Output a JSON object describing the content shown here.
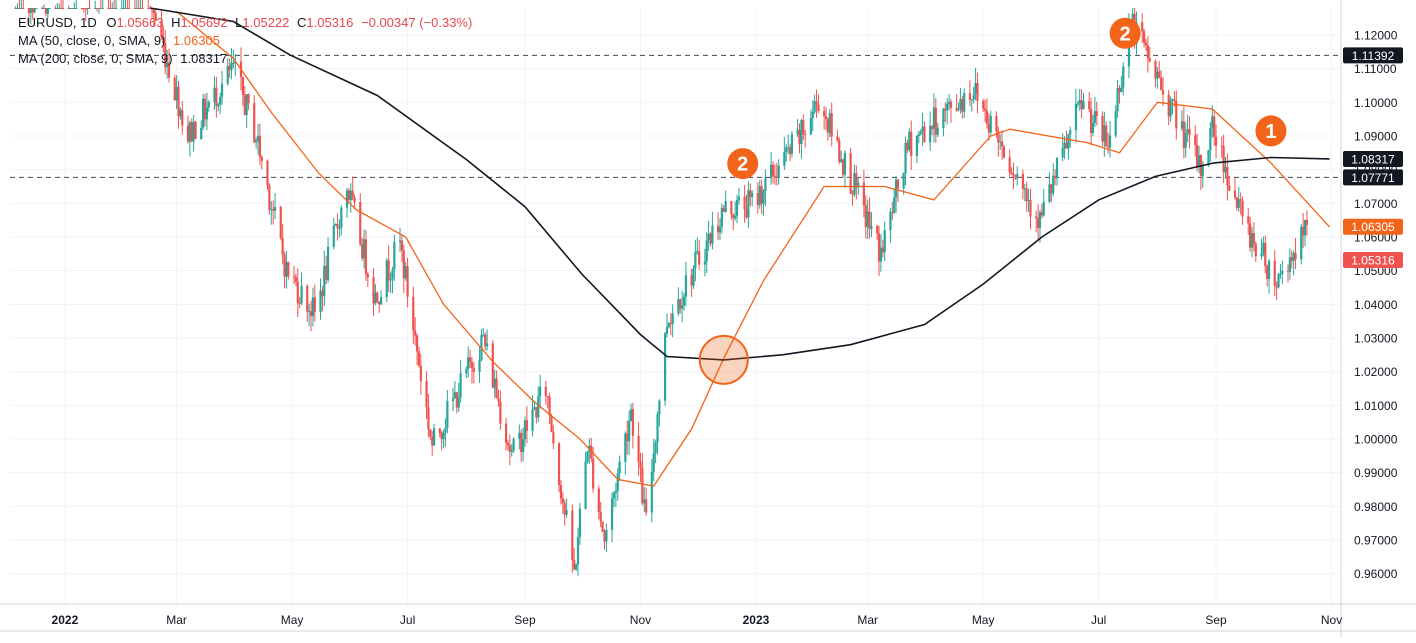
{
  "header": {
    "symbol": "EURUSD, 1D",
    "open_label": "O",
    "open": "1.05663",
    "high_label": "H",
    "high": "1.05692",
    "low_label": "L",
    "low": "1.05222",
    "close_label": "C",
    "close": "1.05316",
    "change": "−0.00347 (−0.33%)"
  },
  "indicators": [
    {
      "label": "MA (50, close, 0, SMA, 9)",
      "value": "1.06305",
      "color": "#f26419"
    },
    {
      "label": "MA (200, close, 0, SMA, 9)",
      "value": "1.08317",
      "color": "#131722"
    }
  ],
  "colors": {
    "up": "#26a69a",
    "down": "#ef5350",
    "ma50": "#f26419",
    "ma200": "#131722",
    "annotation": "#f26419"
  },
  "chart_data": {
    "type": "candlestick",
    "title": "",
    "xlabel": "",
    "ylabel": "",
    "ylim": [
      0.951,
      1.128
    ],
    "xlim": [
      "2021-12-03",
      "2023-11-06"
    ],
    "grid": true,
    "x_ticks": [
      {
        "date": "2022-01-01",
        "label": "2022",
        "bold": true
      },
      {
        "date": "2022-03-01",
        "label": "Mar"
      },
      {
        "date": "2022-05-01",
        "label": "May"
      },
      {
        "date": "2022-07-01",
        "label": "Jul"
      },
      {
        "date": "2022-09-01",
        "label": "Sep"
      },
      {
        "date": "2022-11-01",
        "label": "Nov"
      },
      {
        "date": "2023-01-01",
        "label": "2023",
        "bold": true
      },
      {
        "date": "2023-03-01",
        "label": "Mar"
      },
      {
        "date": "2023-05-01",
        "label": "May"
      },
      {
        "date": "2023-07-01",
        "label": "Jul"
      },
      {
        "date": "2023-09-01",
        "label": "Sep"
      },
      {
        "date": "2023-11-01",
        "label": "Nov"
      }
    ],
    "y_ticks": [
      "0.96000",
      "0.97000",
      "0.98000",
      "0.99000",
      "1.00000",
      "1.01000",
      "1.02000",
      "1.03000",
      "1.04000",
      "1.05000",
      "1.06000",
      "1.07000",
      "1.08000",
      "1.09000",
      "1.10000",
      "1.11000",
      "1.12000"
    ],
    "price_path": [
      [
        "2021-12-03",
        1.131
      ],
      [
        "2022-01-05",
        1.13
      ],
      [
        "2022-02-10",
        1.141
      ],
      [
        "2022-03-07",
        1.09
      ],
      [
        "2022-03-31",
        1.11
      ],
      [
        "2022-04-12",
        1.09
      ],
      [
        "2022-04-28",
        1.05
      ],
      [
        "2022-05-13",
        1.037
      ],
      [
        "2022-05-30",
        1.075
      ],
      [
        "2022-06-14",
        1.042
      ],
      [
        "2022-06-27",
        1.058
      ],
      [
        "2022-07-14",
        0.998
      ],
      [
        "2022-08-10",
        1.03
      ],
      [
        "2022-08-25",
        0.995
      ],
      [
        "2022-09-12",
        1.015
      ],
      [
        "2022-09-27",
        0.96
      ],
      [
        "2022-10-04",
        0.999
      ],
      [
        "2022-10-13",
        0.97
      ],
      [
        "2022-10-27",
        1.009
      ],
      [
        "2022-11-04",
        0.975
      ],
      [
        "2022-11-15",
        1.035
      ],
      [
        "2022-12-15",
        1.068
      ],
      [
        "2022-12-30",
        1.07
      ],
      [
        "2023-01-26",
        1.091
      ],
      [
        "2023-02-03",
        1.101
      ],
      [
        "2023-03-08",
        1.055
      ],
      [
        "2023-03-23",
        1.088
      ],
      [
        "2023-04-26",
        1.104
      ],
      [
        "2023-05-31",
        1.065
      ],
      [
        "2023-06-22",
        1.1
      ],
      [
        "2023-07-06",
        1.087
      ],
      [
        "2023-07-18",
        1.124
      ],
      [
        "2023-08-24",
        1.08
      ],
      [
        "2023-08-30",
        1.093
      ],
      [
        "2023-09-15",
        1.065
      ],
      [
        "2023-10-03",
        1.047
      ],
      [
        "2023-10-24",
        1.067
      ],
      [
        "2023-10-31",
        1.0532
      ]
    ],
    "series": [
      {
        "name": "MA (50, close, 0, SMA, 9)",
        "color": "#f26419",
        "points": [
          [
            "2022-03-01",
            1.127
          ],
          [
            "2022-03-31",
            1.113
          ],
          [
            "2022-04-20",
            1.097
          ],
          [
            "2022-05-15",
            1.079
          ],
          [
            "2022-06-04",
            1.068
          ],
          [
            "2022-06-30",
            1.06
          ],
          [
            "2022-07-20",
            1.04
          ],
          [
            "2022-08-15",
            1.023
          ],
          [
            "2022-09-06",
            1.011
          ],
          [
            "2022-09-30",
            1.0
          ],
          [
            "2022-10-20",
            0.988
          ],
          [
            "2022-11-08",
            0.986
          ],
          [
            "2022-11-28",
            1.003
          ],
          [
            "2022-12-15",
            1.024
          ],
          [
            "2023-01-05",
            1.047
          ],
          [
            "2023-02-06",
            1.075
          ],
          [
            "2023-03-10",
            1.075
          ],
          [
            "2023-04-05",
            1.071
          ],
          [
            "2023-05-05",
            1.09
          ],
          [
            "2023-05-15",
            1.092
          ],
          [
            "2023-06-25",
            1.088
          ],
          [
            "2023-07-12",
            1.085
          ],
          [
            "2023-08-01",
            1.1
          ],
          [
            "2023-08-30",
            1.098
          ],
          [
            "2023-09-30",
            1.082
          ],
          [
            "2023-10-31",
            1.063
          ]
        ]
      },
      {
        "name": "MA (200, close, 0, SMA, 9)",
        "color": "#131722",
        "points": [
          [
            "2022-02-15",
            1.133
          ],
          [
            "2022-03-31",
            1.124
          ],
          [
            "2022-04-30",
            1.114
          ],
          [
            "2022-06-15",
            1.102
          ],
          [
            "2022-08-01",
            1.083
          ],
          [
            "2022-09-01",
            1.069
          ],
          [
            "2022-10-01",
            1.049
          ],
          [
            "2022-11-01",
            1.031
          ],
          [
            "2022-11-15",
            1.0245
          ],
          [
            "2022-12-15",
            1.0235
          ],
          [
            "2023-01-15",
            1.025
          ],
          [
            "2023-02-20",
            1.028
          ],
          [
            "2023-03-31",
            1.034
          ],
          [
            "2023-05-01",
            1.046
          ],
          [
            "2023-06-01",
            1.06
          ],
          [
            "2023-07-01",
            1.071
          ],
          [
            "2023-07-31",
            1.078
          ],
          [
            "2023-08-31",
            1.082
          ],
          [
            "2023-09-30",
            1.0836
          ],
          [
            "2023-10-31",
            1.0832
          ]
        ]
      }
    ],
    "horizontal_lines": [
      {
        "value": 1.11392,
        "label": "1.11392",
        "style": "dashed"
      },
      {
        "value": 1.07771,
        "label": "1.07771",
        "style": "dashed"
      }
    ],
    "price_labels": [
      {
        "value": 1.08317,
        "label": "1.08317",
        "bg": "#131722",
        "fg": "#ffffff"
      },
      {
        "value": 1.07771,
        "label": "1.07771",
        "bg": "#131722",
        "fg": "#ffffff"
      },
      {
        "value": 1.11392,
        "label": "1.11392",
        "bg": "#131722",
        "fg": "#ffffff"
      },
      {
        "value": 1.06305,
        "label": "1.06305",
        "bg": "#f26419",
        "fg": "#ffffff"
      },
      {
        "value": 1.05316,
        "label": "1.05316",
        "bg": "#ef5350",
        "fg": "#ffffff"
      }
    ],
    "annotations": [
      {
        "type": "circle",
        "date": "2022-12-15",
        "value": 1.0235
      },
      {
        "type": "marker",
        "label": "2",
        "date": "2023-07-15",
        "value": 1.1205
      },
      {
        "type": "marker",
        "label": "2",
        "date": "2022-12-25",
        "value": 1.0818
      },
      {
        "type": "marker",
        "label": "1",
        "date": "2023-09-30",
        "value": 1.0915
      }
    ]
  }
}
